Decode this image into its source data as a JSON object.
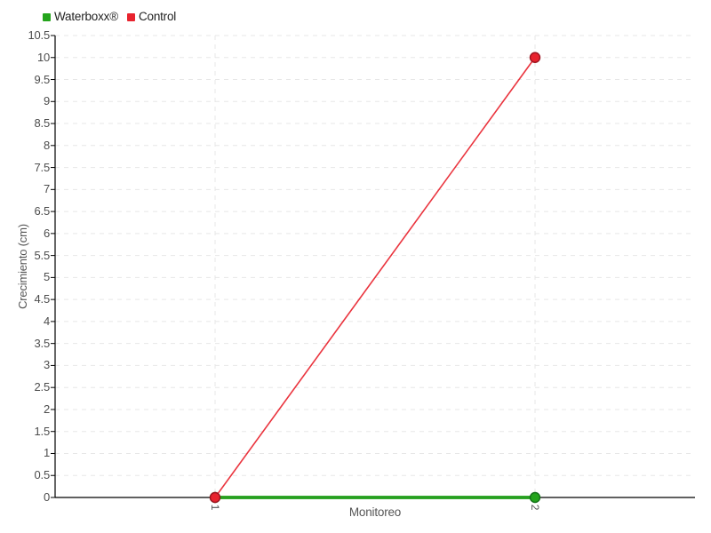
{
  "chart_data": {
    "type": "line",
    "categories": [
      "1",
      "2"
    ],
    "series": [
      {
        "name": "Waterboxx®",
        "values": [
          0,
          0
        ],
        "color": "#24A41C",
        "edge_color": "#15701A",
        "line_width": 4
      },
      {
        "name": "Control",
        "values": [
          0,
          10
        ],
        "color": "#E8232E",
        "edge_color": "#9C1420",
        "line_width": 1.6
      }
    ],
    "title": "",
    "xlabel": "Monitoreo",
    "ylabel": "Crecimiento (cm)",
    "ylim": [
      0,
      10.5
    ],
    "ytick_step": 0.5,
    "xtick_labels": [
      "1",
      "2"
    ],
    "grid": "dashed",
    "legend_position": "top-left"
  },
  "legend": {
    "items": [
      {
        "label": "Waterboxx®",
        "color": "#24A41C"
      },
      {
        "label": "Control",
        "color": "#E8232E"
      }
    ]
  },
  "axes": {
    "x_title": "Monitoreo",
    "y_title": "Crecimiento (cm)",
    "y_tick_labels": [
      "0",
      "0.5",
      "1",
      "1.5",
      "2",
      "2.5",
      "3",
      "3.5",
      "4",
      "4.5",
      "5",
      "5.5",
      "6",
      "6.5",
      "7",
      "7.5",
      "8",
      "8.5",
      "9",
      "9.5",
      "10",
      "10.5"
    ],
    "x_tick_labels": [
      "1",
      "2"
    ]
  },
  "colors": {
    "grid": "#E7E7E7",
    "axis": "#000000",
    "x_tick": "#333333",
    "tick_label": "#4D4D4D",
    "axis_title": "#555555",
    "legend_text": "#1F1F1F",
    "background": "#FFFFFF"
  }
}
